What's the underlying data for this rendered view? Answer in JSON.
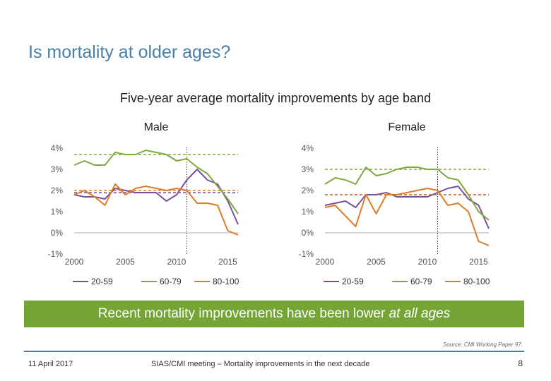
{
  "slide": {
    "title": "Is mortality at older ages?",
    "banner_prefix": "Recent mortality improvements have been lower ",
    "banner_emphasis": "at all ages",
    "source": "Source: CMI Working Paper 97.",
    "footer_date": "11 April 2017",
    "footer_meeting": "SIAS/CMI meeting – Mortality improvements in the next decade",
    "page_number": "8"
  },
  "colors": {
    "20-59": "#7b4fa0",
    "60-79": "#7fa83f",
    "80-100": "#e07b26",
    "banner": "#74a535",
    "title": "#4a7fa8"
  },
  "chart_data": [
    {
      "type": "line",
      "title": "Five-year average mortality improvements by age band",
      "panel": "Male",
      "x": [
        2000,
        2001,
        2002,
        2003,
        2004,
        2005,
        2006,
        2007,
        2008,
        2009,
        2010,
        2011,
        2012,
        2013,
        2014,
        2015,
        2016
      ],
      "xticks": [
        2000,
        2005,
        2010,
        2015
      ],
      "ylim": [
        -1,
        4
      ],
      "yticks": [
        "-1%",
        "0%",
        "1%",
        "2%",
        "3%",
        "4%"
      ],
      "ytick_values": [
        -1,
        0,
        1,
        2,
        3,
        4
      ],
      "vline_x": 2011,
      "legend_position": "bottom",
      "series": [
        {
          "name": "20-59",
          "values": [
            1.8,
            1.7,
            1.7,
            1.6,
            2.1,
            2.0,
            1.9,
            1.9,
            1.9,
            1.5,
            1.8,
            2.5,
            3.0,
            2.5,
            2.3,
            1.5,
            0.4
          ],
          "ref": 1.9
        },
        {
          "name": "60-79",
          "values": [
            3.2,
            3.4,
            3.2,
            3.2,
            3.8,
            3.7,
            3.7,
            3.9,
            3.8,
            3.7,
            3.4,
            3.5,
            3.1,
            2.8,
            2.2,
            1.6,
            0.9
          ],
          "ref": 3.7
        },
        {
          "name": "80-100",
          "values": [
            1.8,
            2.0,
            1.7,
            1.3,
            2.3,
            1.8,
            2.1,
            2.2,
            2.1,
            2.0,
            2.1,
            2.0,
            1.4,
            1.4,
            1.3,
            0.1,
            -0.1
          ],
          "ref": 2.0
        }
      ]
    },
    {
      "type": "line",
      "panel": "Female",
      "x": [
        2000,
        2001,
        2002,
        2003,
        2004,
        2005,
        2006,
        2007,
        2008,
        2009,
        2010,
        2011,
        2012,
        2013,
        2014,
        2015,
        2016
      ],
      "xticks": [
        2000,
        2005,
        2010,
        2015
      ],
      "ylim": [
        -1,
        4
      ],
      "yticks": [
        "-1%",
        "0%",
        "1%",
        "2%",
        "3%",
        "4%"
      ],
      "ytick_values": [
        -1,
        0,
        1,
        2,
        3,
        4
      ],
      "vline_x": 2011,
      "legend_position": "bottom",
      "series": [
        {
          "name": "20-59",
          "values": [
            1.3,
            1.4,
            1.5,
            1.2,
            1.8,
            1.8,
            1.9,
            1.7,
            1.7,
            1.7,
            1.7,
            1.9,
            2.1,
            2.2,
            1.6,
            1.3,
            0.2
          ],
          "ref": 1.8
        },
        {
          "name": "60-79",
          "values": [
            2.3,
            2.6,
            2.5,
            2.3,
            3.1,
            2.7,
            2.8,
            3.0,
            3.1,
            3.1,
            3.0,
            3.0,
            2.6,
            2.5,
            1.8,
            1.0,
            0.6
          ],
          "ref": 3.0
        },
        {
          "name": "80-100",
          "values": [
            1.2,
            1.3,
            0.8,
            0.3,
            1.8,
            0.9,
            1.8,
            1.8,
            1.9,
            2.0,
            2.1,
            2.0,
            1.3,
            1.4,
            1.0,
            -0.4,
            -0.6
          ],
          "ref": 1.8
        }
      ]
    }
  ]
}
